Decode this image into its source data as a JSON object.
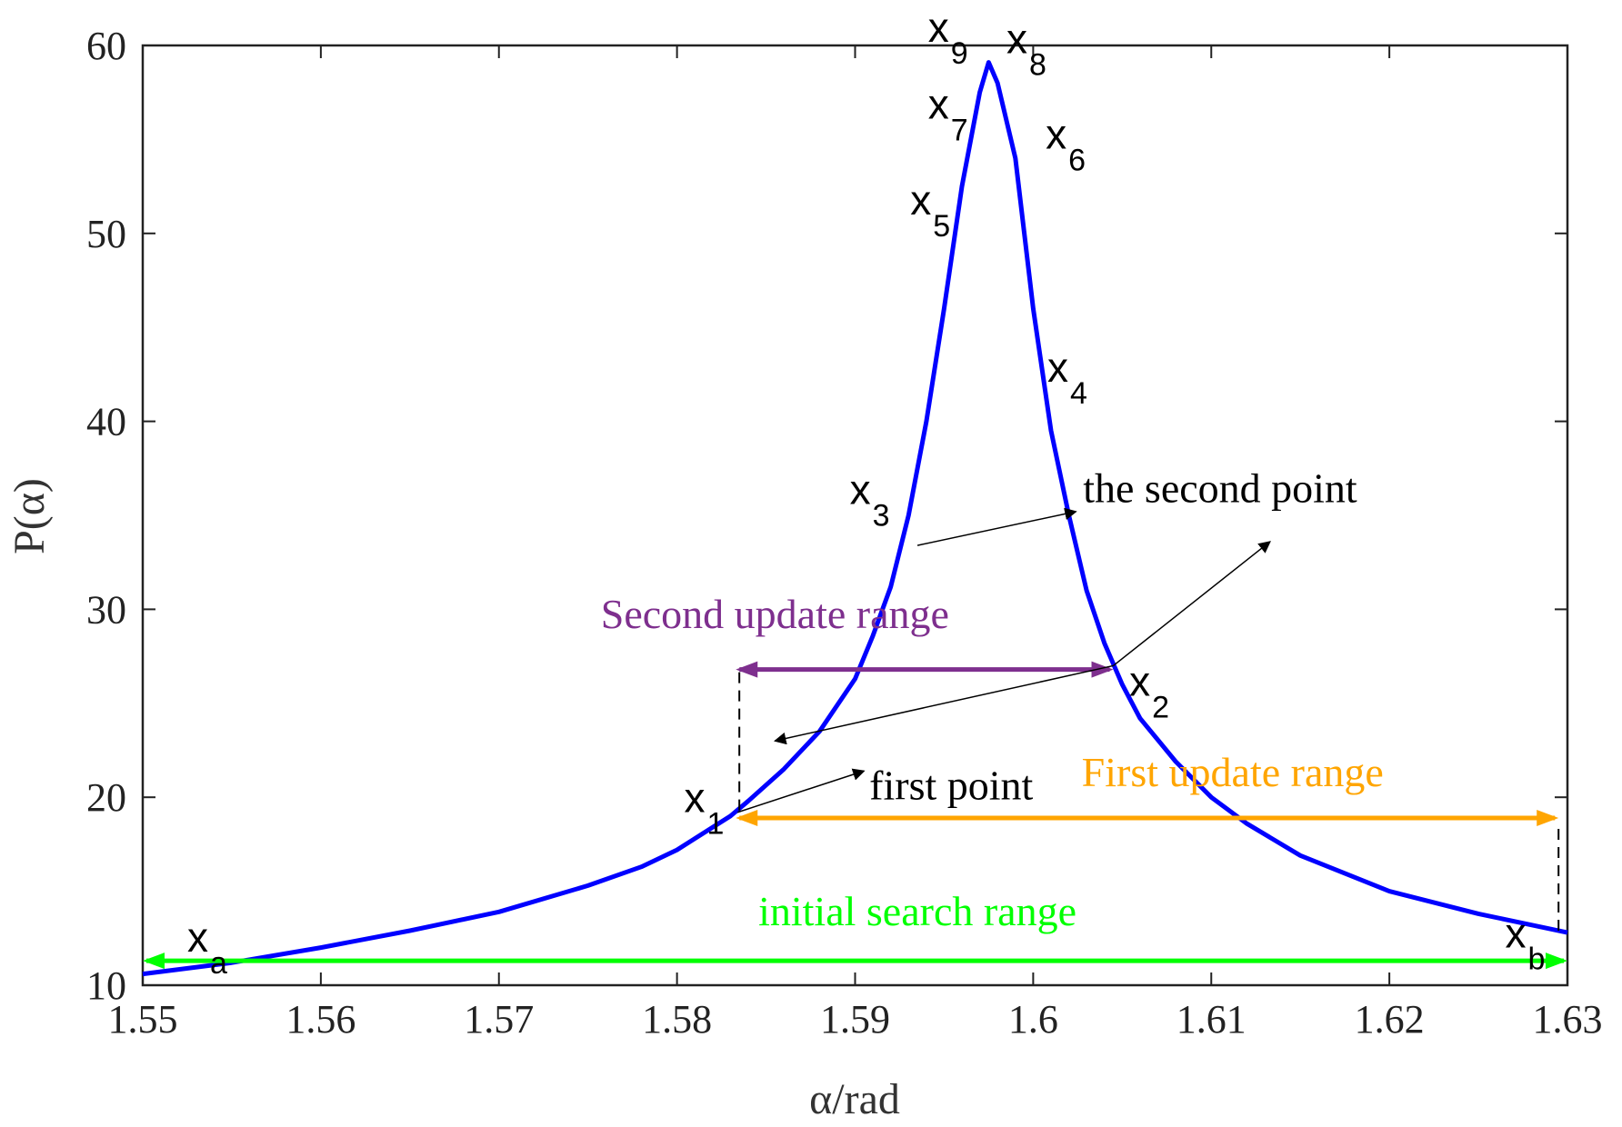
{
  "chart_data": {
    "type": "line",
    "xlabel": "α/rad",
    "ylabel": "P(α)",
    "xlim": [
      1.55,
      1.63
    ],
    "ylim": [
      10,
      60
    ],
    "xticks": [
      1.55,
      1.56,
      1.57,
      1.58,
      1.59,
      1.6,
      1.61,
      1.62,
      1.63
    ],
    "xtick_labels": [
      "1.55",
      "1.56",
      "1.57",
      "1.58",
      "1.59",
      "1.6",
      "1.61",
      "1.62",
      "1.63"
    ],
    "yticks": [
      10,
      20,
      30,
      40,
      50,
      60
    ],
    "ytick_labels": [
      "10",
      "20",
      "30",
      "40",
      "50",
      "60"
    ],
    "grid": false,
    "colors": {
      "curve": "#0000ff",
      "initial_range": "#00ff00",
      "first_range": "#ffa500",
      "second_range": "#7e2f8e",
      "annotation": "#000000"
    },
    "series": [
      {
        "x": [
          1.55,
          1.555,
          1.56,
          1.565,
          1.57,
          1.575,
          1.578,
          1.58,
          1.582,
          1.583,
          1.584,
          1.586,
          1.588,
          1.59,
          1.591,
          1.592,
          1.593,
          1.594,
          1.595,
          1.596,
          1.597,
          1.5975,
          1.598,
          1.599,
          1.6,
          1.601,
          1.602,
          1.603,
          1.604,
          1.605,
          1.606,
          1.608,
          1.61,
          1.612,
          1.615,
          1.62,
          1.625,
          1.63
        ],
        "y": [
          10.6,
          11.2,
          12.0,
          12.9,
          13.9,
          15.3,
          16.3,
          17.2,
          18.4,
          19.0,
          19.8,
          21.5,
          23.5,
          26.3,
          28.6,
          31.2,
          35.0,
          40.0,
          46.0,
          52.5,
          57.5,
          59.1,
          58.0,
          54.0,
          46.0,
          39.5,
          35.0,
          31.0,
          28.2,
          26.0,
          24.2,
          21.9,
          20.0,
          18.6,
          16.9,
          15.0,
          13.8,
          12.8
        ]
      }
    ],
    "point_labels": [
      {
        "base": "x",
        "sub": "a",
        "x": 1.5525,
        "y": 11.8
      },
      {
        "base": "x",
        "sub": "b",
        "x": 1.6265,
        "y": 12.0
      },
      {
        "base": "x",
        "sub": "1",
        "x": 1.5804,
        "y": 19.2
      },
      {
        "base": "x",
        "sub": "2",
        "x": 1.6054,
        "y": 25.4
      },
      {
        "base": "x",
        "sub": "3",
        "x": 1.5897,
        "y": 35.6
      },
      {
        "base": "x",
        "sub": "4",
        "x": 1.6008,
        "y": 42.1
      },
      {
        "base": "x",
        "sub": "5",
        "x": 1.5931,
        "y": 51.0
      },
      {
        "base": "x",
        "sub": "6",
        "x": 1.6007,
        "y": 54.5
      },
      {
        "base": "x",
        "sub": "7",
        "x": 1.5941,
        "y": 56.1
      },
      {
        "base": "x",
        "sub": "8",
        "x": 1.5985,
        "y": 59.6
      },
      {
        "base": "x",
        "sub": "9",
        "x": 1.5941,
        "y": 60.2
      }
    ],
    "ranges": [
      {
        "label": "initial search range",
        "x1": 1.55,
        "x2": 1.63,
        "y": 11.3,
        "label_x": 1.5935,
        "label_y": 13.2,
        "color": "#00ff00"
      },
      {
        "label": "First update range",
        "x1": 1.5833,
        "x2": 1.6295,
        "y": 18.9,
        "label_x": 1.6112,
        "label_y": 20.6,
        "color": "#ffa500"
      },
      {
        "label": "Second update range",
        "x1": 1.5833,
        "x2": 1.6045,
        "y": 26.8,
        "label_x": 1.5855,
        "label_y": 29.0,
        "color": "#7e2f8e"
      }
    ],
    "guides": [
      {
        "x": 1.5835,
        "y1": 19.3,
        "y2": 26.9
      },
      {
        "x": 1.6295,
        "y1": 12.9,
        "y2": 18.7
      }
    ],
    "annotations": [
      {
        "text": "first point",
        "x": 1.5908,
        "y": 19.9
      },
      {
        "text": "the second point",
        "x": 1.6028,
        "y": 35.7
      }
    ],
    "arrows": [
      {
        "from": [
          1.5834,
          19.2
        ],
        "to": [
          1.5905,
          21.4
        ]
      },
      {
        "from": [
          1.6045,
          27.0
        ],
        "to": [
          1.5855,
          23.0
        ]
      },
      {
        "from": [
          1.6045,
          27.0
        ],
        "to": [
          1.6133,
          33.6
        ]
      },
      {
        "from": [
          1.5935,
          33.4
        ],
        "to": [
          1.6024,
          35.2
        ]
      }
    ]
  }
}
